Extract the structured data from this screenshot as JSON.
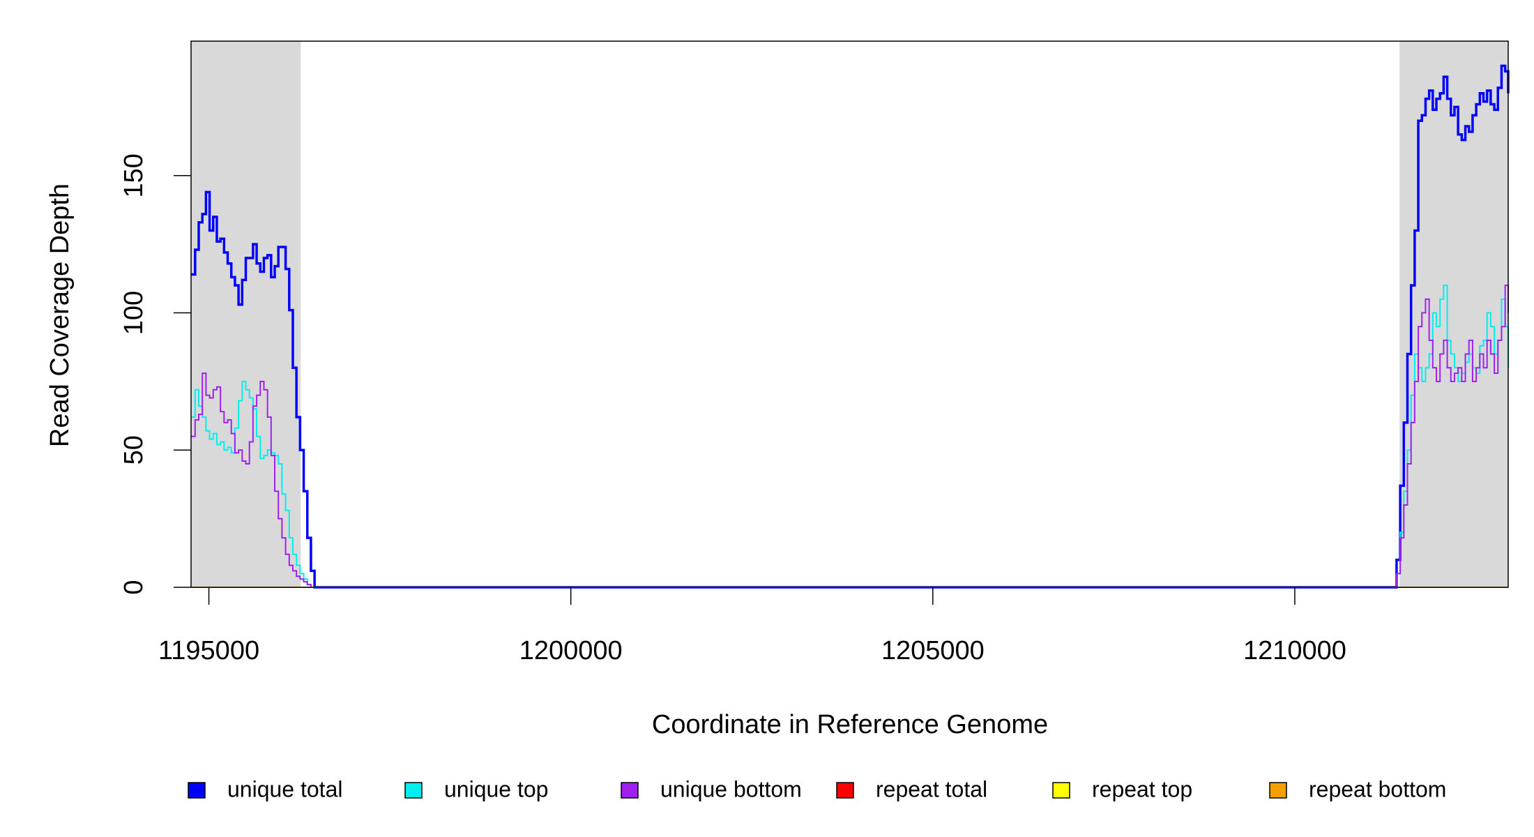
{
  "chart_data": {
    "type": "step",
    "x_label": "Coordinate in Reference Genome",
    "y_label": "Read Coverage Depth",
    "xlim": [
      1194754,
      1212948
    ],
    "ylim": [
      0,
      199
    ],
    "xticks": [
      1195000,
      1200000,
      1205000,
      1210000
    ],
    "yticks": [
      0,
      50,
      100,
      150
    ],
    "highlight_color": "#d9d9d9",
    "highlight_ranges": [
      [
        1194754,
        1196269
      ],
      [
        1211447,
        1212948
      ]
    ],
    "x": [
      1194760,
      1194810,
      1194860,
      1194910,
      1194960,
      1195010,
      1195060,
      1195110,
      1195160,
      1195210,
      1195260,
      1195310,
      1195360,
      1195410,
      1195460,
      1195510,
      1195560,
      1195610,
      1195660,
      1195710,
      1195760,
      1195810,
      1195860,
      1195910,
      1195960,
      1196010,
      1196060,
      1196110,
      1196160,
      1196210,
      1196260,
      1196310,
      1196360,
      1196410,
      1196460,
      1211356,
      1211406,
      1211456,
      1211506,
      1211556,
      1211606,
      1211656,
      1211706,
      1211756,
      1211806,
      1211856,
      1211906,
      1211956,
      1212006,
      1212056,
      1212106,
      1212156,
      1212206,
      1212256,
      1212306,
      1212356,
      1212406,
      1212456,
      1212506,
      1212556,
      1212606,
      1212656,
      1212706,
      1212756,
      1212806,
      1212856,
      1212906,
      1212948
    ],
    "series": [
      {
        "name": "unique total",
        "color": "#0000ff",
        "values": [
          114,
          123,
          133,
          136,
          144,
          130,
          135,
          126,
          127,
          122,
          118,
          113,
          110,
          103,
          112,
          120,
          120,
          125,
          118,
          115,
          120,
          121,
          113,
          117,
          124,
          124,
          116,
          101,
          80,
          62,
          50,
          35,
          18,
          6,
          0,
          0,
          10,
          37,
          60,
          85,
          110,
          130,
          170,
          172,
          178,
          181,
          174,
          178,
          180,
          186,
          178,
          172,
          175,
          165,
          163,
          168,
          166,
          172,
          176,
          180,
          177,
          181,
          176,
          174,
          182,
          190,
          188,
          180
        ]
      },
      {
        "name": "unique top",
        "color": "#00eeee",
        "values": [
          62,
          72,
          66,
          62,
          57,
          54,
          56,
          52,
          53,
          50,
          51,
          49,
          58,
          68,
          75,
          72,
          69,
          65,
          55,
          47,
          48,
          50,
          49,
          48,
          45,
          34,
          28,
          18,
          12,
          8,
          5,
          3,
          1,
          0,
          0,
          0,
          5,
          20,
          35,
          50,
          70,
          85,
          80,
          75,
          80,
          85,
          100,
          95,
          105,
          110,
          90,
          85,
          80,
          75,
          78,
          82,
          85,
          80,
          78,
          88,
          90,
          100,
          95,
          85,
          90,
          105,
          95,
          80
        ]
      },
      {
        "name": "unique bottom",
        "color": "#a020f0",
        "values": [
          55,
          61,
          63,
          78,
          70,
          69,
          72,
          73,
          64,
          60,
          61,
          56,
          49,
          50,
          46,
          45,
          53,
          66,
          70,
          75,
          72,
          62,
          48,
          35,
          25,
          18,
          12,
          8,
          6,
          4,
          3,
          2,
          1,
          0,
          0,
          0,
          5,
          18,
          30,
          45,
          60,
          75,
          95,
          100,
          105,
          90,
          80,
          75,
          85,
          90,
          80,
          75,
          78,
          80,
          75,
          85,
          90,
          75,
          80,
          85,
          80,
          90,
          85,
          78,
          90,
          95,
          110,
          100
        ]
      },
      {
        "name": "repeat total",
        "color": "#ff0000",
        "values": [
          0,
          0,
          0,
          0,
          0,
          0,
          0,
          0,
          0,
          0,
          0,
          0,
          0,
          0,
          0,
          0,
          0,
          0,
          0,
          0,
          0,
          0,
          0,
          0,
          0,
          0,
          0,
          0,
          0,
          0,
          0,
          0,
          0,
          0,
          0,
          0,
          0,
          0,
          0,
          0,
          0,
          0,
          0,
          0,
          0,
          0,
          0,
          0,
          0,
          0,
          0,
          0,
          0,
          0,
          0,
          0,
          0,
          0,
          0,
          0,
          0,
          0,
          0,
          0,
          0,
          0,
          0,
          0
        ]
      },
      {
        "name": "repeat top",
        "color": "#ffff00",
        "values": [
          0,
          0,
          0,
          0,
          0,
          0,
          0,
          0,
          0,
          0,
          0,
          0,
          0,
          0,
          0,
          0,
          0,
          0,
          0,
          0,
          0,
          0,
          0,
          0,
          0,
          0,
          0,
          0,
          0,
          0,
          0,
          0,
          0,
          0,
          0,
          0,
          0,
          0,
          0,
          0,
          0,
          0,
          0,
          0,
          0,
          0,
          0,
          0,
          0,
          0,
          0,
          0,
          0,
          0,
          0,
          0,
          0,
          0,
          0,
          0,
          0,
          0,
          0,
          0,
          0,
          0,
          0,
          0
        ]
      },
      {
        "name": "repeat bottom",
        "color": "#f5a000",
        "values": [
          0,
          0,
          0,
          0,
          0,
          0,
          0,
          0,
          0,
          0,
          0,
          0,
          0,
          0,
          0,
          0,
          0,
          0,
          0,
          0,
          0,
          0,
          0,
          0,
          0,
          0,
          0,
          0,
          0,
          0,
          0,
          0,
          0,
          0,
          0,
          0,
          0,
          0,
          0,
          0,
          0,
          0,
          0,
          0,
          0,
          0,
          0,
          0,
          0,
          0,
          0,
          0,
          0,
          0,
          0,
          0,
          0,
          0,
          0,
          0,
          0,
          0,
          0,
          0,
          0,
          0,
          0,
          0
        ]
      }
    ]
  }
}
